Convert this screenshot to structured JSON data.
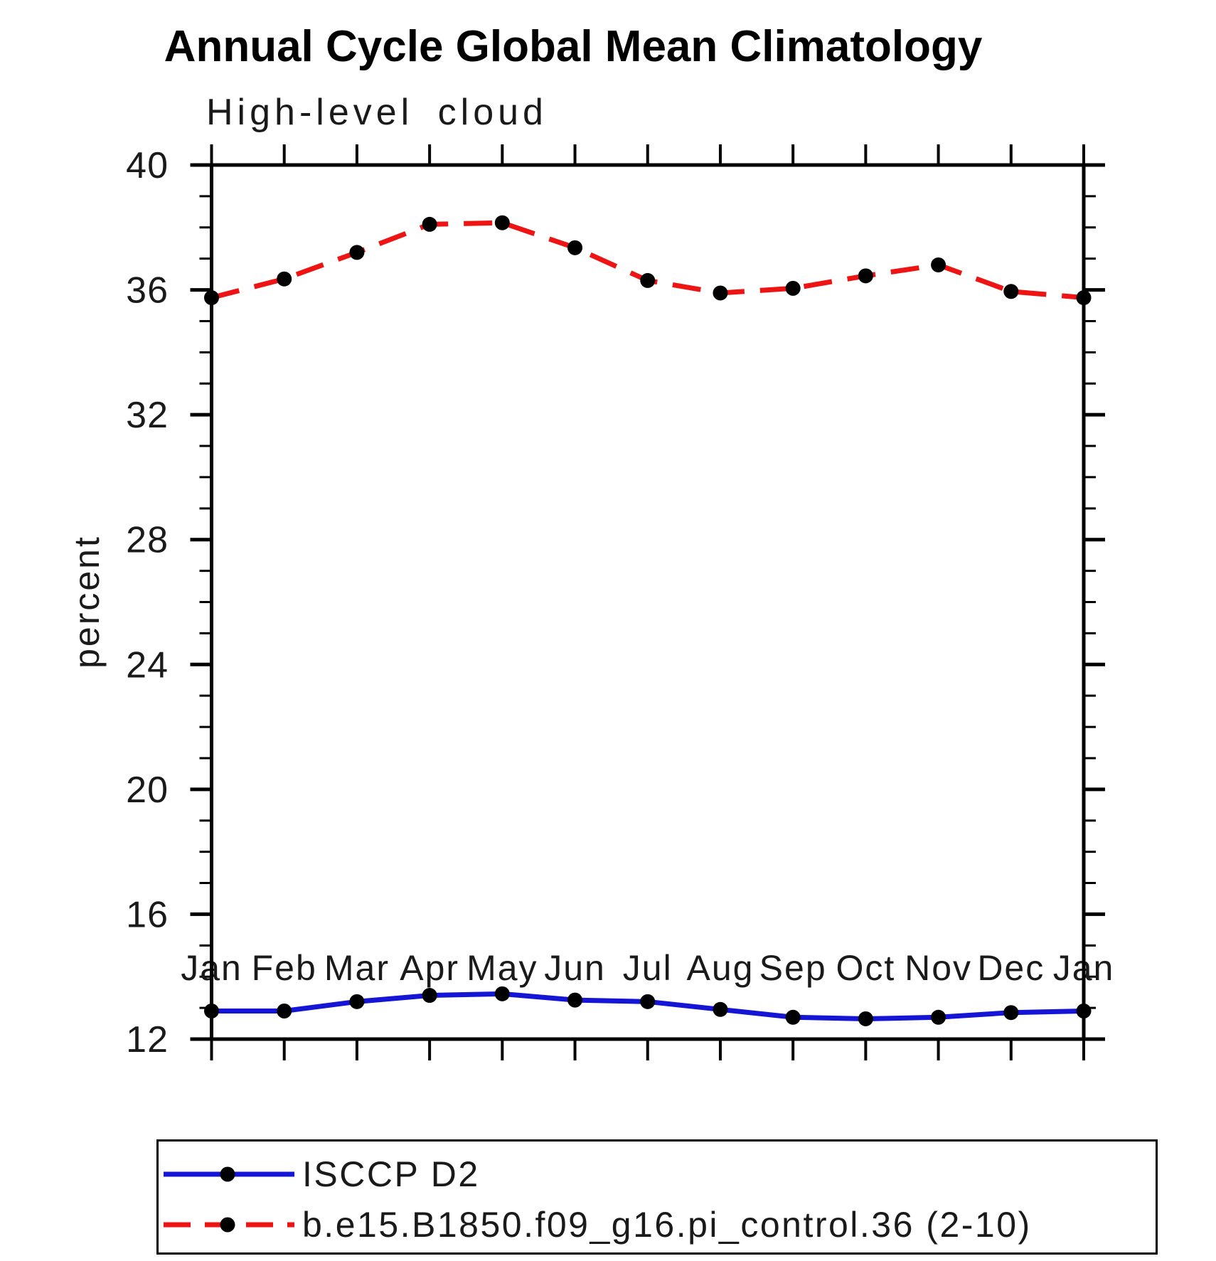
{
  "page": {
    "background_color": "#ffffff",
    "text_color": "#000000"
  },
  "chart_data": {
    "type": "line",
    "title": "Annual Cycle Global Mean Climatology",
    "subtitle": "High-level cloud",
    "ylabel": "percent",
    "xlabel": "",
    "categories": [
      "Jan",
      "Feb",
      "Mar",
      "Apr",
      "May",
      "Jun",
      "Jul",
      "Aug",
      "Sep",
      "Oct",
      "Nov",
      "Dec",
      "Jan"
    ],
    "series": [
      {
        "name": "ISCCP D2",
        "style": "solid",
        "color": "#1515d6",
        "values": [
          12.9,
          12.9,
          13.2,
          13.4,
          13.45,
          13.25,
          13.2,
          12.95,
          12.7,
          12.65,
          12.7,
          12.85,
          12.9
        ]
      },
      {
        "name": "b.e15.B1850.f09_g16.pi_control.36 (2-10)",
        "style": "dashed",
        "color": "#ee1414",
        "values": [
          35.75,
          36.35,
          37.2,
          38.1,
          38.15,
          37.35,
          36.3,
          35.9,
          36.05,
          36.45,
          36.8,
          35.95,
          35.75
        ]
      }
    ],
    "ylim": [
      12,
      40
    ],
    "yticks_major": [
      12,
      16,
      20,
      24,
      28,
      32,
      36,
      40
    ],
    "ytick_minor_step": 1,
    "grid": "off",
    "legend_position": "bottom",
    "marker": {
      "shape": "filled-circle",
      "color": "#000000",
      "radius": 10.5
    },
    "frame_color": "#000000"
  }
}
